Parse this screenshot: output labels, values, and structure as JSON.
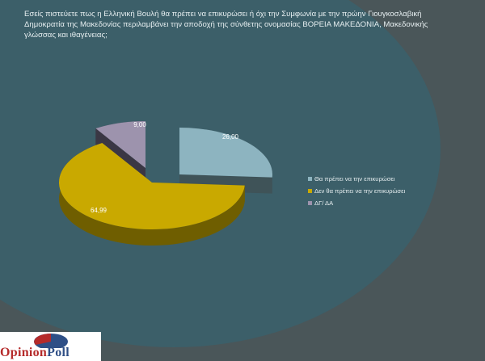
{
  "title": "Εσείς πιστεύετε πως η Ελληνική Βουλή θα πρέπει να επικυρώσει ή όχι  την Συμφωνία με την πρώην Γιουγκοσλαβική Δημοκρατία της Μακεδονίας περιλαμβάνει την αποδοχή της σύνθετης ονομασίας ΒΟΡΕΙΑ ΜΑΚΕΔΟΝΙΑ, Μακεδονικής γλώσσας και ιθαγένειας;",
  "chart_data": {
    "type": "pie",
    "style": "3d-exploded",
    "categories": [
      "Θα πρέπει να την επικυρώσει",
      "Δεν θα πρέπει να την επικυρώσει",
      "ΔΓ/ ΔΑ"
    ],
    "values": [
      26.0,
      64.99,
      9.0
    ],
    "data_labels": [
      "26,00",
      "64,99",
      "9,00"
    ],
    "colors": [
      "#8db4c0",
      "#c9a900",
      "#9d93ad"
    ],
    "legend_position": "right"
  },
  "logo": {
    "part1": "Opinion",
    "part2": "Poll",
    "colors": [
      "#b52a2a",
      "#2f4f86"
    ]
  }
}
